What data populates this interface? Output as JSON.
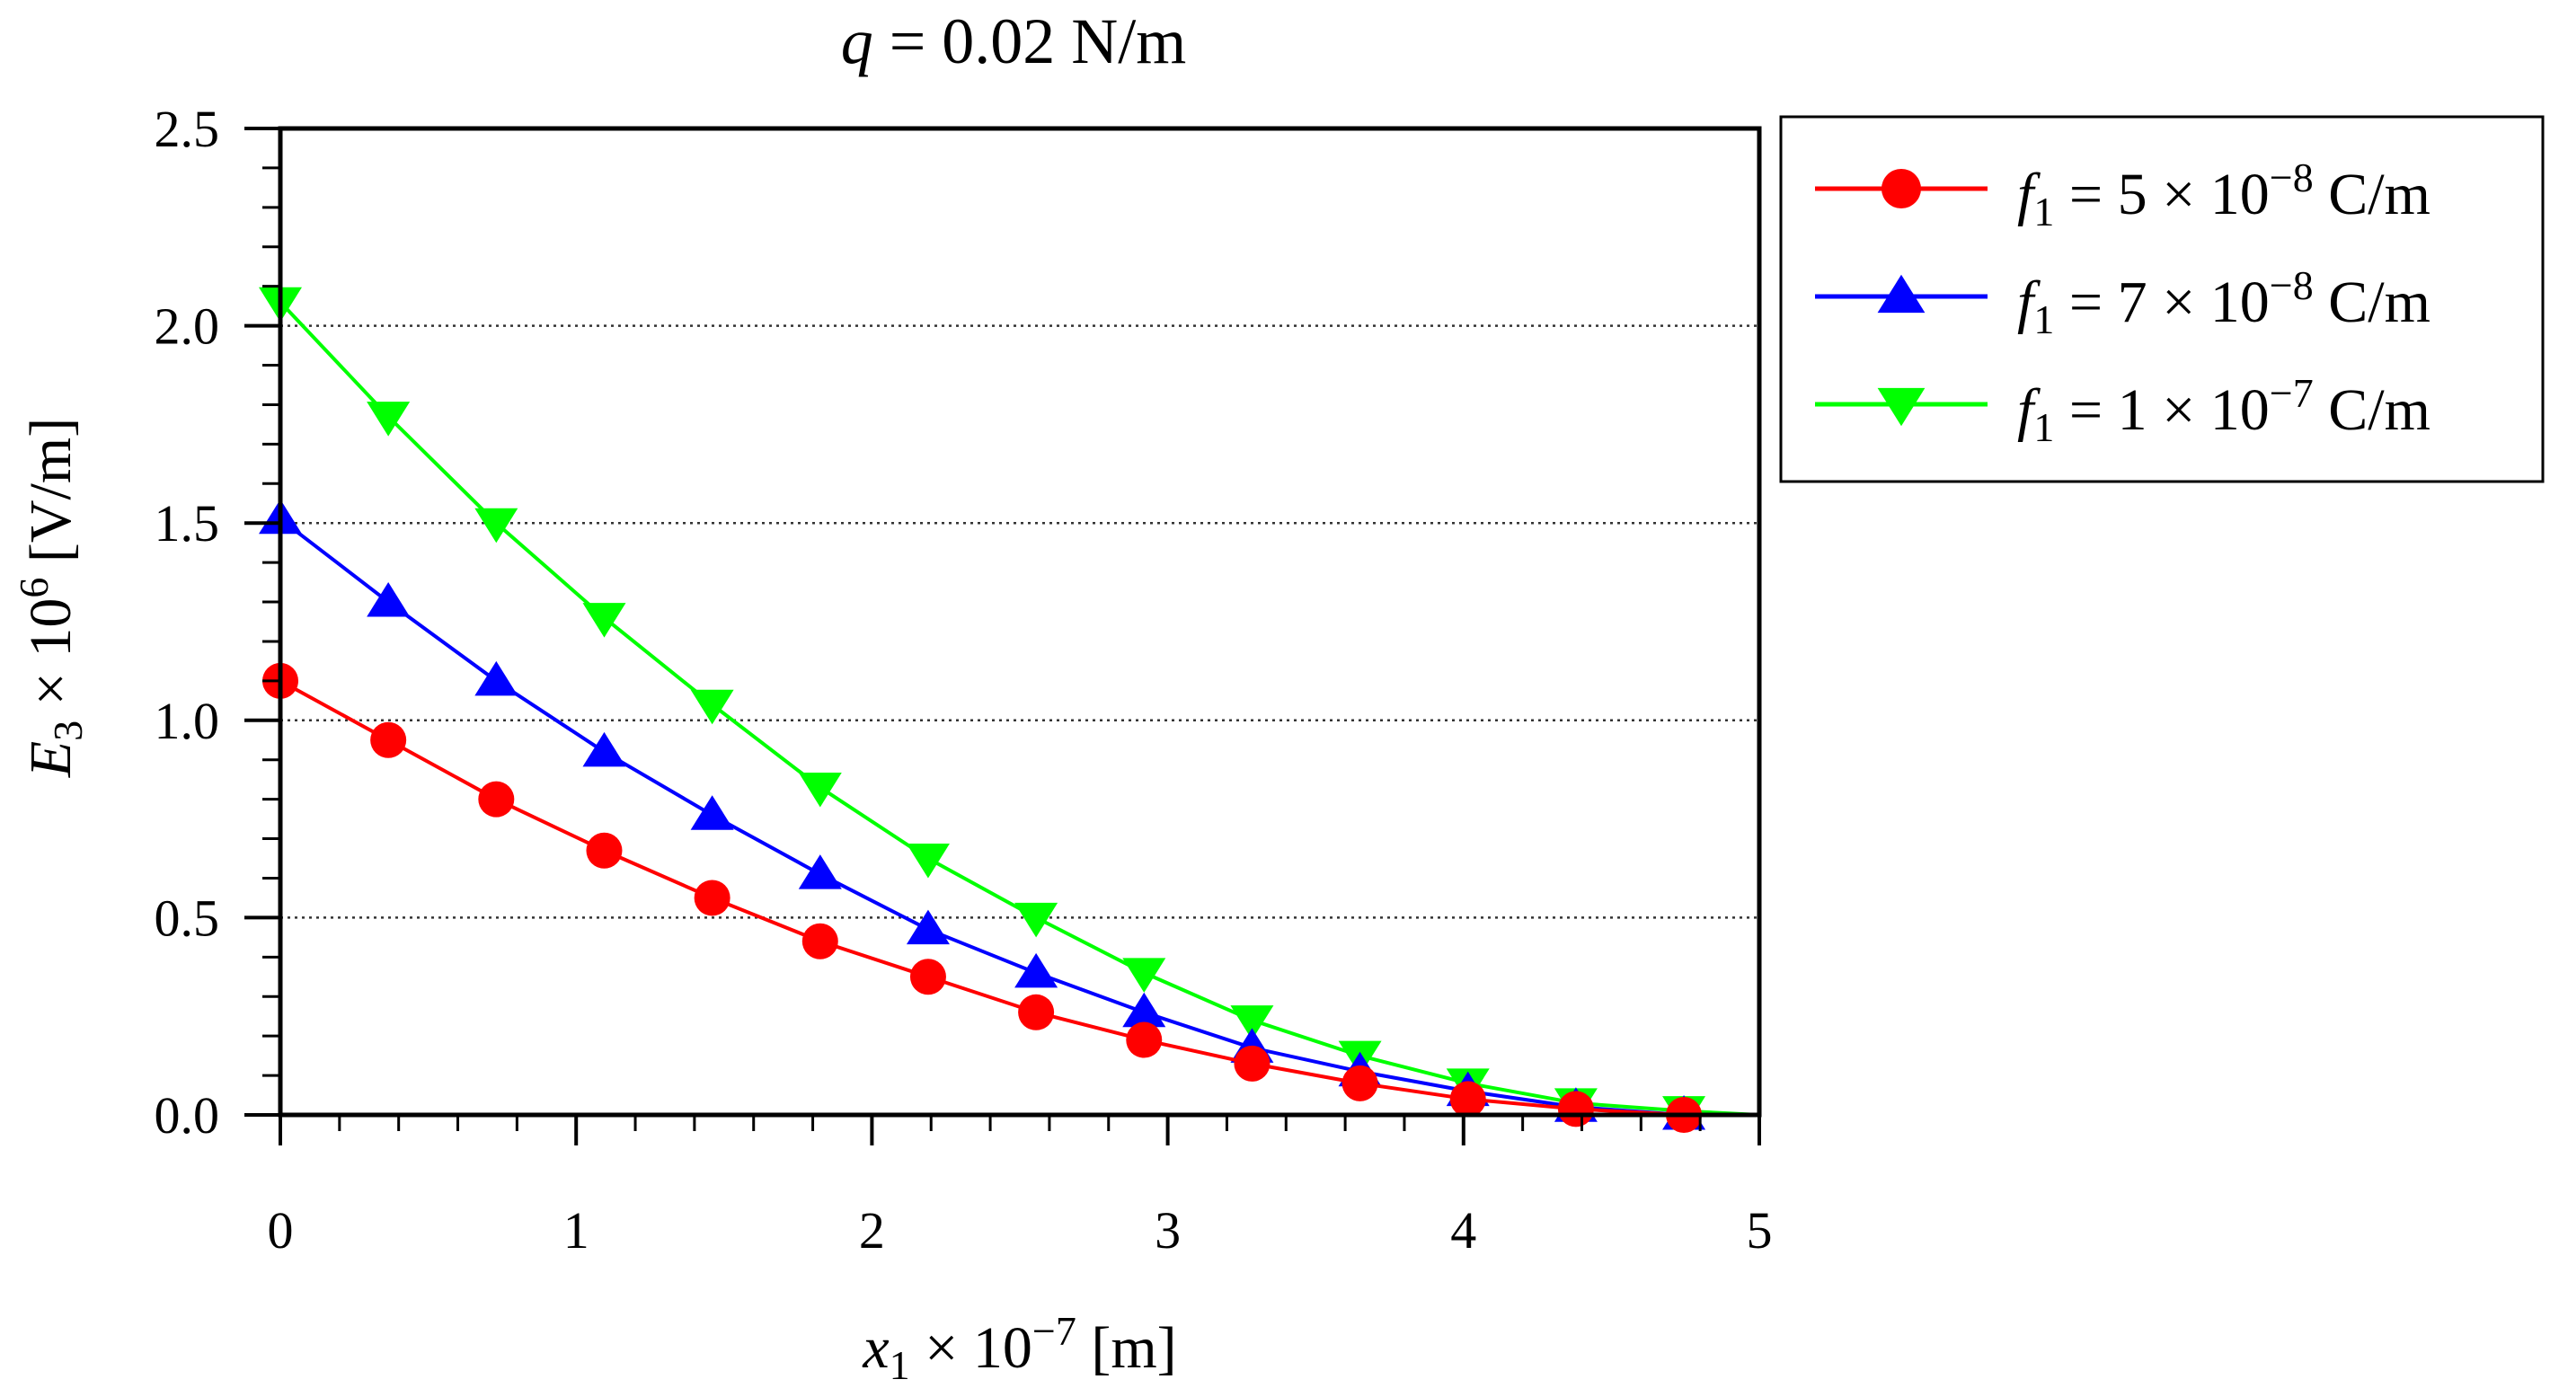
{
  "chart_data": {
    "type": "line",
    "title": {
      "var": "q",
      "rest": " = 0.02 N/m"
    },
    "xlabel": {
      "var": "x",
      "sub": "1",
      "mid": " × 10",
      "sup": "−7",
      "rest": " [m]"
    },
    "ylabel": {
      "var": "E",
      "sub": "3",
      "mid": " × 10",
      "sup": "6",
      "rest": " [V/m]"
    },
    "xlim": [
      0,
      5
    ],
    "ylim": [
      0,
      2.5
    ],
    "xticks": [
      0,
      1,
      2,
      3,
      4,
      5
    ],
    "xtick_labels": [
      "0",
      "1",
      "2",
      "3",
      "4",
      "5"
    ],
    "yticks": [
      0,
      0.5,
      1.0,
      1.5,
      2.0,
      2.5
    ],
    "ytick_labels": [
      "0.0",
      "0.5",
      "1.0",
      "1.5",
      "2.0",
      "2.5"
    ],
    "grid": {
      "y": [
        0.5,
        1.0,
        1.5,
        2.0
      ],
      "style": "dotted"
    },
    "legend_position": "outside-top-right",
    "x": [
      0,
      0.365,
      0.73,
      1.095,
      1.46,
      1.825,
      2.19,
      2.555,
      2.92,
      3.285,
      3.65,
      4.015,
      4.38,
      4.745
    ],
    "series": [
      {
        "name": "f1 = 5 × 10−8 C/m",
        "legend": {
          "var": "f",
          "sub": "1",
          "mid": " = 5 × 10",
          "sup": "−8",
          "rest": " C/m"
        },
        "color": "#ff0000",
        "marker": "circle",
        "values": [
          1.1,
          0.95,
          0.8,
          0.67,
          0.55,
          0.44,
          0.35,
          0.26,
          0.19,
          0.13,
          0.08,
          0.04,
          0.015,
          0.0
        ]
      },
      {
        "name": "f1 = 7 × 10−8 C/m",
        "legend": {
          "var": "f",
          "sub": "1",
          "mid": " = 7 × 10",
          "sup": "−8",
          "rest": " C/m"
        },
        "color": "#0000ff",
        "marker": "triangle-up",
        "values": [
          1.51,
          1.3,
          1.1,
          0.92,
          0.76,
          0.61,
          0.47,
          0.36,
          0.26,
          0.17,
          0.11,
          0.06,
          0.02,
          0.0
        ]
      },
      {
        "name": "f1 = 1 × 10−7 C/m",
        "legend": {
          "var": "f",
          "sub": "1",
          "mid": " = 1 × 10",
          "sup": "−7",
          "rest": " C/m"
        },
        "color": "#00ff00",
        "marker": "triangle-down",
        "values": [
          2.06,
          1.77,
          1.5,
          1.26,
          1.04,
          0.83,
          0.65,
          0.5,
          0.36,
          0.24,
          0.15,
          0.08,
          0.03,
          0.01
        ]
      }
    ]
  }
}
